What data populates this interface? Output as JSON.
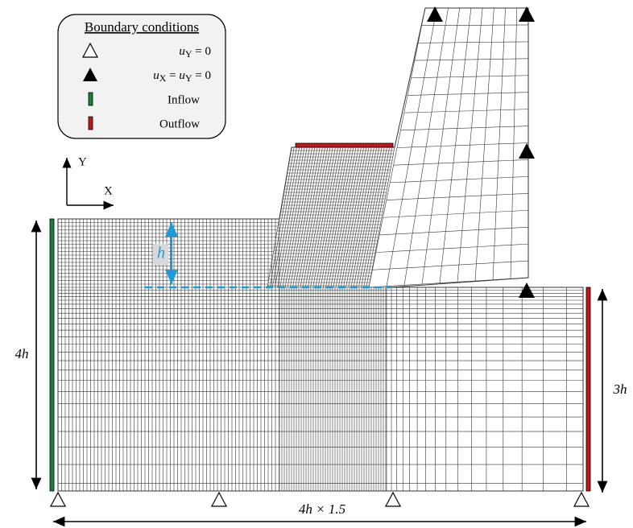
{
  "legend": {
    "title": "Boundary conditions",
    "items": [
      {
        "label": [
          "u",
          "Y",
          " = 0"
        ]
      },
      {
        "label": [
          "u",
          "X",
          " = ",
          "u",
          "Y",
          " = 0"
        ]
      },
      {
        "label": "Inflow"
      },
      {
        "label": "Outflow"
      }
    ]
  },
  "axes": {
    "y": "Y",
    "x": "X"
  },
  "dimensions": {
    "gap": "h",
    "height_total": "4h",
    "height_outlet": "3h",
    "width": "4h × 1.5"
  }
}
